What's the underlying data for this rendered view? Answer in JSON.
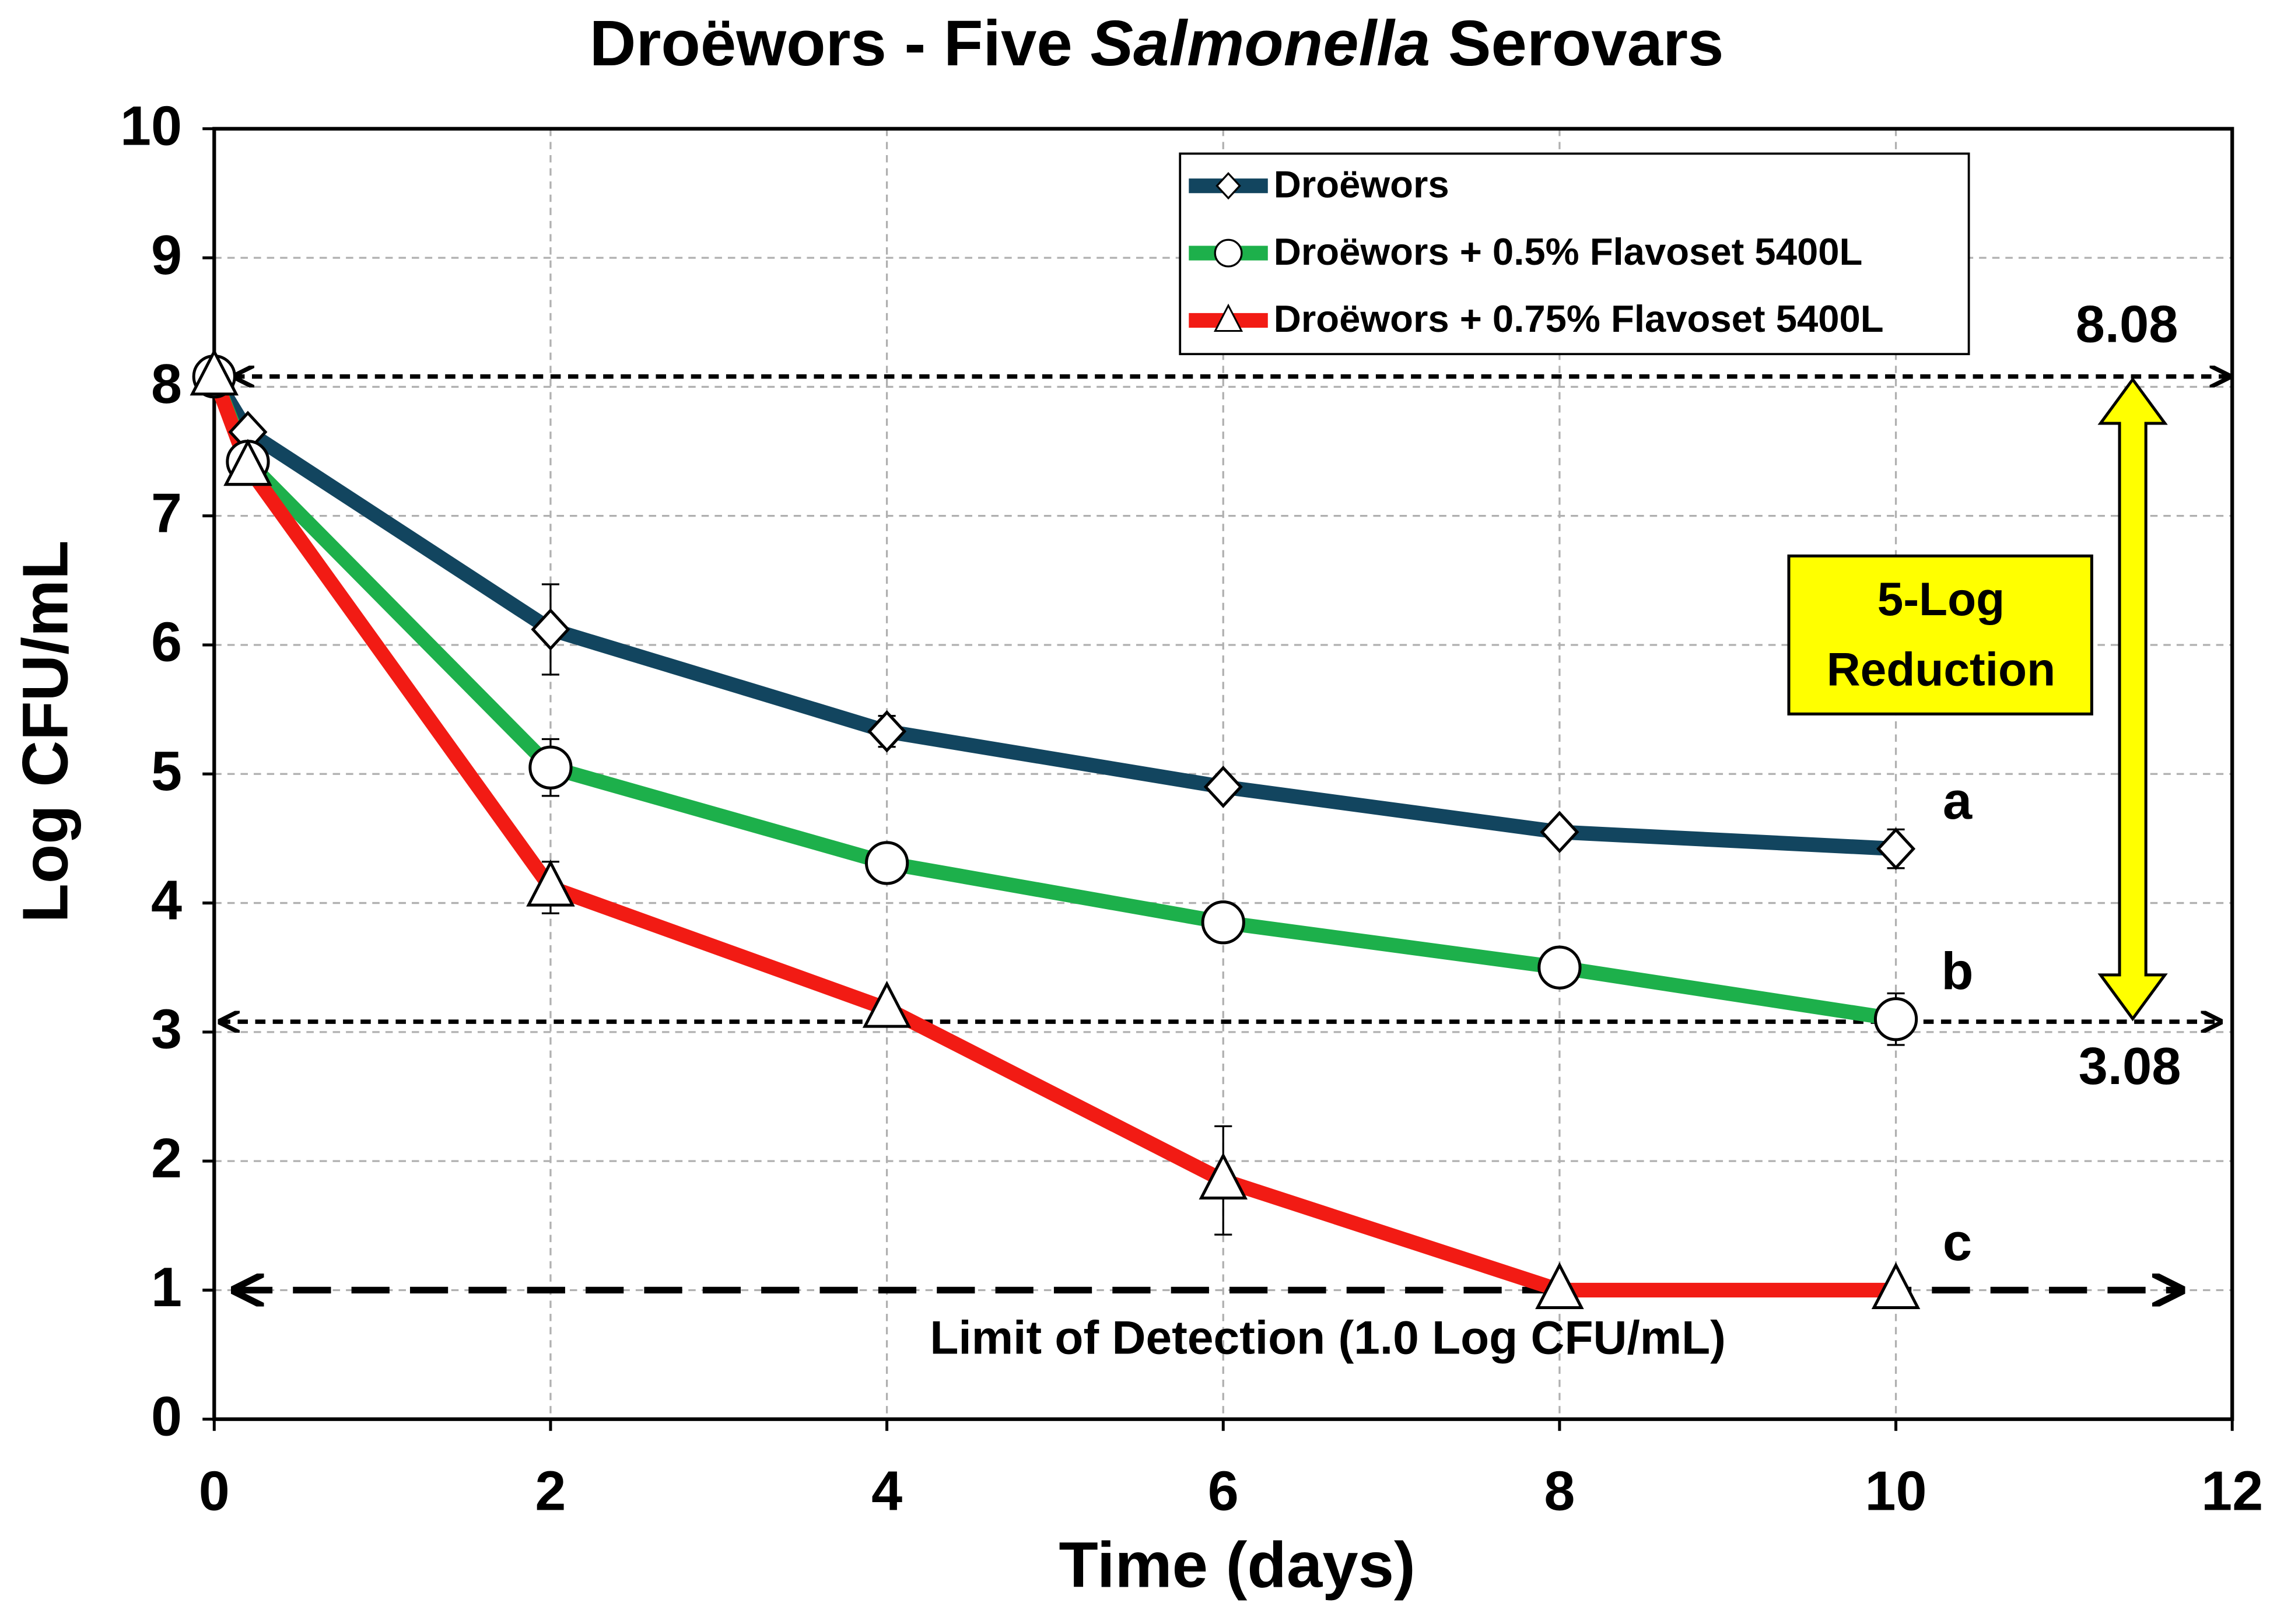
{
  "chart_data": {
    "type": "line",
    "title": [
      "Droëwors - Five ",
      "Salmonella",
      " Serovars"
    ],
    "x_label": "Time (days)",
    "y_label": "Log CFU/mL",
    "x": [
      0,
      0.2,
      2,
      4,
      6,
      8,
      10
    ],
    "xlim": [
      0,
      12
    ],
    "xticks": [
      0,
      2,
      4,
      6,
      8,
      10,
      12
    ],
    "ylim": [
      0,
      10
    ],
    "yticks": [
      0,
      1,
      2,
      3,
      4,
      5,
      6,
      7,
      8,
      9,
      10
    ],
    "grid": true,
    "legend": "top-right",
    "series": [
      {
        "name": "Droëwors",
        "color": "#12455f",
        "marker": "diamond",
        "letter": "a",
        "values": [
          8.08,
          7.65,
          6.12,
          5.33,
          4.9,
          4.55,
          4.42
        ],
        "errors": [
          null,
          null,
          0.35,
          0.12,
          null,
          null,
          0.15
        ]
      },
      {
        "name": "Droëwors + 0.5% Flavoset 5400L",
        "color": "#1db04b",
        "marker": "circle",
        "letter": "b",
        "values": [
          8.08,
          7.42,
          5.05,
          4.31,
          3.85,
          3.5,
          3.1
        ],
        "errors": [
          null,
          null,
          0.22,
          null,
          null,
          null,
          0.2
        ]
      },
      {
        "name": "Droëwors + 0.75% Flavoset 5400L",
        "color": "#f21b14",
        "marker": "triangle",
        "letter": "c",
        "values": [
          8.08,
          7.38,
          4.12,
          3.18,
          1.85,
          1.0,
          1.0
        ],
        "errors": [
          null,
          null,
          0.2,
          null,
          0.42,
          null,
          null
        ]
      }
    ],
    "reference_lines": [
      {
        "value": 8.08,
        "label": "8.08"
      },
      {
        "value": 3.08,
        "label": "3.08"
      },
      {
        "value": 1.0,
        "label": "Limit of Detection (1.0 Log CFU/mL)"
      }
    ],
    "reduction_label": [
      "5-Log",
      "Reduction"
    ]
  }
}
